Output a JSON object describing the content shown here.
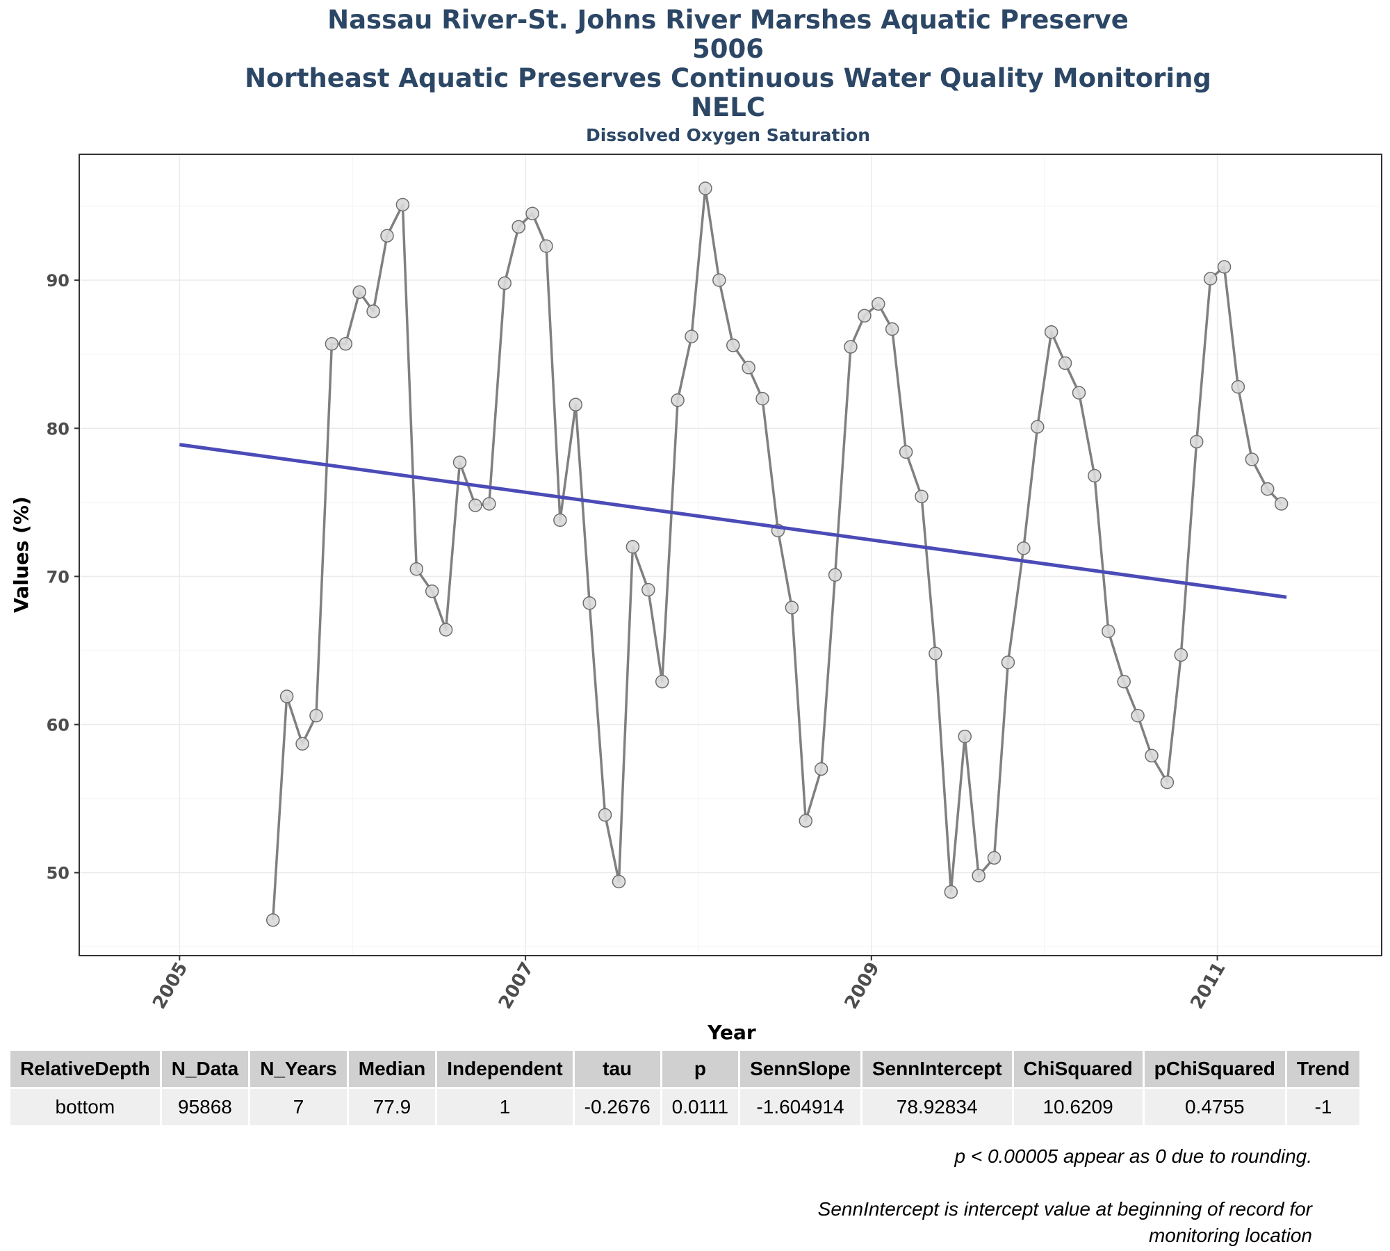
{
  "titles": [
    "Nassau River-St. Johns River Marshes Aquatic Preserve",
    "5006",
    "Northeast Aquatic Preserves Continuous Water Quality Monitoring",
    "NELC"
  ],
  "subtitle": "Dissolved Oxygen Saturation",
  "colors": {
    "title": "#2c4766",
    "series": "#808080",
    "point_fill": "#d9d9d9",
    "trend": "#4b4bb8",
    "grid": "#ebebeb"
  },
  "chart_data": {
    "type": "line",
    "title": "Dissolved Oxygen Saturation",
    "xlabel": "Year",
    "ylabel": "Values (%)",
    "xlim": [
      2004.42,
      2011.95
    ],
    "ylim": [
      44.4,
      98.5
    ],
    "x_ticks": [
      2005,
      2007,
      2009,
      2011
    ],
    "y_ticks": [
      50,
      60,
      70,
      80,
      90
    ],
    "grid": true,
    "series": [
      {
        "points": [
          [
            2005.54,
            46.8
          ],
          [
            2005.62,
            61.9
          ],
          [
            2005.71,
            58.7
          ],
          [
            2005.79,
            60.6
          ],
          [
            2005.88,
            85.7
          ],
          [
            2005.96,
            85.7
          ],
          [
            2006.04,
            89.2
          ],
          [
            2006.12,
            87.9
          ],
          [
            2006.2,
            93.0
          ],
          [
            2006.29,
            95.1
          ],
          [
            2006.37,
            70.5
          ],
          [
            2006.46,
            69.0
          ],
          [
            2006.54,
            66.4
          ],
          [
            2006.62,
            77.7
          ],
          [
            2006.71,
            74.8
          ],
          [
            2006.79,
            74.9
          ],
          [
            2006.88,
            89.8
          ],
          [
            2006.96,
            93.6
          ],
          [
            2007.04,
            94.5
          ],
          [
            2007.12,
            92.3
          ],
          [
            2007.2,
            73.8
          ],
          [
            2007.29,
            81.6
          ],
          [
            2007.37,
            68.2
          ],
          [
            2007.46,
            53.9
          ],
          [
            2007.54,
            49.4
          ],
          [
            2007.62,
            72.0
          ],
          [
            2007.71,
            69.1
          ],
          [
            2007.79,
            62.9
          ],
          [
            2007.88,
            81.9
          ],
          [
            2007.96,
            86.2
          ],
          [
            2008.04,
            96.2
          ],
          [
            2008.12,
            90.0
          ],
          [
            2008.2,
            85.6
          ],
          [
            2008.29,
            84.1
          ],
          [
            2008.37,
            82.0
          ],
          [
            2008.46,
            73.1
          ],
          [
            2008.54,
            67.9
          ],
          [
            2008.62,
            53.5
          ],
          [
            2008.71,
            57.0
          ],
          [
            2008.79,
            70.1
          ],
          [
            2008.88,
            85.5
          ],
          [
            2008.96,
            87.6
          ],
          [
            2009.04,
            88.4
          ],
          [
            2009.12,
            86.7
          ],
          [
            2009.2,
            78.4
          ],
          [
            2009.29,
            75.4
          ],
          [
            2009.37,
            64.8
          ],
          [
            2009.46,
            48.7
          ],
          [
            2009.54,
            59.2
          ],
          [
            2009.62,
            49.8
          ],
          [
            2009.71,
            51.0
          ],
          [
            2009.79,
            64.2
          ],
          [
            2009.88,
            71.9
          ],
          [
            2009.96,
            80.1
          ],
          [
            2010.04,
            86.5
          ],
          [
            2010.12,
            84.4
          ],
          [
            2010.2,
            82.4
          ],
          [
            2010.29,
            76.8
          ],
          [
            2010.37,
            66.3
          ],
          [
            2010.46,
            62.9
          ],
          [
            2010.54,
            60.6
          ],
          [
            2010.62,
            57.9
          ],
          [
            2010.71,
            56.1
          ],
          [
            2010.79,
            64.7
          ],
          [
            2010.88,
            79.1
          ],
          [
            2010.96,
            90.1
          ],
          [
            2011.04,
            90.9
          ],
          [
            2011.12,
            82.8
          ],
          [
            2011.2,
            77.9
          ],
          [
            2011.29,
            75.9
          ],
          [
            2011.37,
            74.9
          ]
        ]
      }
    ],
    "trend_line": {
      "x": [
        2005,
        2011.4
      ],
      "y": [
        78.9,
        68.6
      ]
    }
  },
  "table": {
    "headers": [
      "RelativeDepth",
      "N_Data",
      "N_Years",
      "Median",
      "Independent",
      "tau",
      "p",
      "SennSlope",
      "SennIntercept",
      "ChiSquared",
      "pChiSquared",
      "Trend"
    ],
    "row": [
      "bottom",
      "95868",
      "7",
      "77.9",
      "1",
      "-0.2676",
      "0.0111",
      "-1.604914",
      "78.92834",
      "10.6209",
      "0.4755",
      "-1"
    ]
  },
  "notes": [
    "p < 0.00005 appear as 0 due to rounding.",
    "SennIntercept is intercept value at beginning of record for monitoring location"
  ]
}
